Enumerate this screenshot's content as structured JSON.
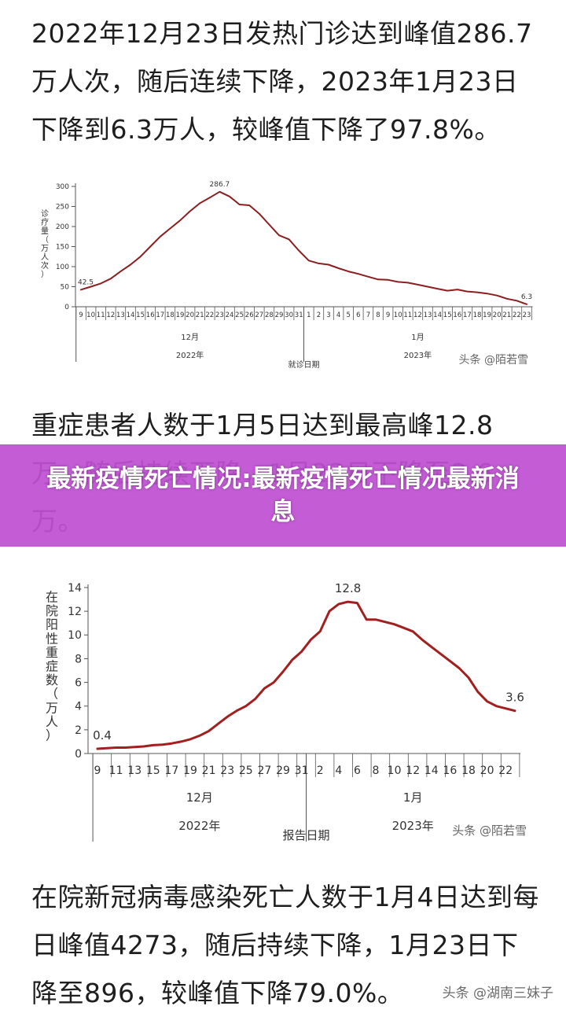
{
  "text": {
    "paragraph1": "2022年12月23日发热门诊达到峰值286.7万人次，随后连续下降，2023年1月23日下降到6.3万人，较峰值下降了97.8%。",
    "paragraph2": "重症患者人数于1月5日达到最高峰12.8万，随后持续下降，1月23日下降至3.6万。",
    "paragraph3": "在院新冠病毒感染死亡人数于1月4日达到每日峰值4273，随后持续下降，1月23日下降至896，较峰值下降79.0%。",
    "banner_title": "最新疫情死亡情况:最新疫情死亡情况最新消息",
    "page_watermark": "头条 @湖南三妹子"
  },
  "chart_data": [
    {
      "type": "line",
      "ylabel": "诊疗量（万人次）",
      "xlabel": "就诊日期",
      "ylim": [
        0,
        300
      ],
      "yticks": [
        0,
        50,
        100,
        150,
        200,
        250,
        300
      ],
      "x": [
        "9",
        "10",
        "11",
        "12",
        "13",
        "14",
        "15",
        "16",
        "17",
        "18",
        "19",
        "20",
        "21",
        "22",
        "23",
        "24",
        "25",
        "26",
        "27",
        "28",
        "29",
        "30",
        "31",
        "1",
        "2",
        "3",
        "4",
        "5",
        "6",
        "7",
        "8",
        "9",
        "10",
        "11",
        "12",
        "13",
        "14",
        "15",
        "16",
        "17",
        "18",
        "19",
        "20",
        "21",
        "22",
        "23"
      ],
      "values": [
        42.5,
        50,
        58,
        70,
        88,
        105,
        125,
        150,
        175,
        195,
        215,
        238,
        258,
        272,
        286.7,
        275,
        255,
        253,
        232,
        205,
        178,
        168,
        140,
        115,
        108,
        105,
        96,
        88,
        82,
        75,
        68,
        67,
        62,
        60,
        55,
        50,
        45,
        40,
        43,
        38,
        36,
        33,
        28,
        20,
        15,
        6.3
      ],
      "month_labels": [
        {
          "text": "12月",
          "index": 11
        },
        {
          "text": "1月",
          "index": 34
        }
      ],
      "year_labels": [
        {
          "text": "2022年",
          "index": 11
        },
        {
          "text": "2023年",
          "index": 34
        }
      ],
      "divider_index": 22.5,
      "annotations": [
        {
          "index": 0,
          "text": "42.5"
        },
        {
          "index": 14,
          "text": "286.7"
        },
        {
          "index": 45,
          "text": "6.3"
        }
      ],
      "watermark": "头条 @陌若雪",
      "line_color": "#8b1e1e",
      "grid": false,
      "legend": "none"
    },
    {
      "type": "line",
      "ylabel": "在院阳性重症数（万人）",
      "xlabel": "报告日期",
      "ylim": [
        0,
        14
      ],
      "yticks": [
        0,
        2,
        4,
        6,
        8,
        10,
        12,
        14
      ],
      "x": [
        "9",
        "10",
        "11",
        "12",
        "13",
        "14",
        "15",
        "16",
        "17",
        "18",
        "19",
        "20",
        "21",
        "22",
        "23",
        "24",
        "25",
        "26",
        "27",
        "28",
        "29",
        "30",
        "31",
        "1",
        "2",
        "3",
        "4",
        "5",
        "6",
        "7",
        "8",
        "9",
        "10",
        "11",
        "12",
        "13",
        "14",
        "15",
        "16",
        "17",
        "18",
        "19",
        "20",
        "21",
        "22",
        "23"
      ],
      "x_tick_labels": [
        "9",
        "11",
        "13",
        "15",
        "17",
        "19",
        "21",
        "23",
        "25",
        "27",
        "29",
        "31",
        "2",
        "4",
        "6",
        "8",
        "10",
        "12",
        "14",
        "16",
        "18",
        "20",
        "22"
      ],
      "values": [
        0.4,
        0.45,
        0.5,
        0.5,
        0.55,
        0.6,
        0.7,
        0.75,
        0.85,
        1.0,
        1.2,
        1.5,
        1.9,
        2.5,
        3.1,
        3.6,
        4.0,
        4.6,
        5.5,
        6.0,
        6.9,
        7.9,
        8.6,
        9.6,
        10.3,
        12.0,
        12.6,
        12.8,
        12.7,
        11.3,
        11.3,
        11.1,
        10.9,
        10.6,
        10.3,
        9.6,
        9.0,
        8.4,
        7.8,
        7.2,
        6.4,
        5.2,
        4.4,
        4.0,
        3.8,
        3.6
      ],
      "month_labels": [
        {
          "text": "12月",
          "index": 11
        },
        {
          "text": "1月",
          "index": 34
        }
      ],
      "year_labels": [
        {
          "text": "2022年",
          "index": 11
        },
        {
          "text": "2023年",
          "index": 34
        }
      ],
      "divider_index": 22.5,
      "annotations": [
        {
          "index": 0,
          "text": "0.4"
        },
        {
          "index": 27,
          "text": "12.8"
        },
        {
          "index": 45,
          "text": "3.6"
        }
      ],
      "watermark": "头条 @陌若雪",
      "line_color": "#a1201f",
      "grid": false,
      "legend": "none"
    }
  ]
}
